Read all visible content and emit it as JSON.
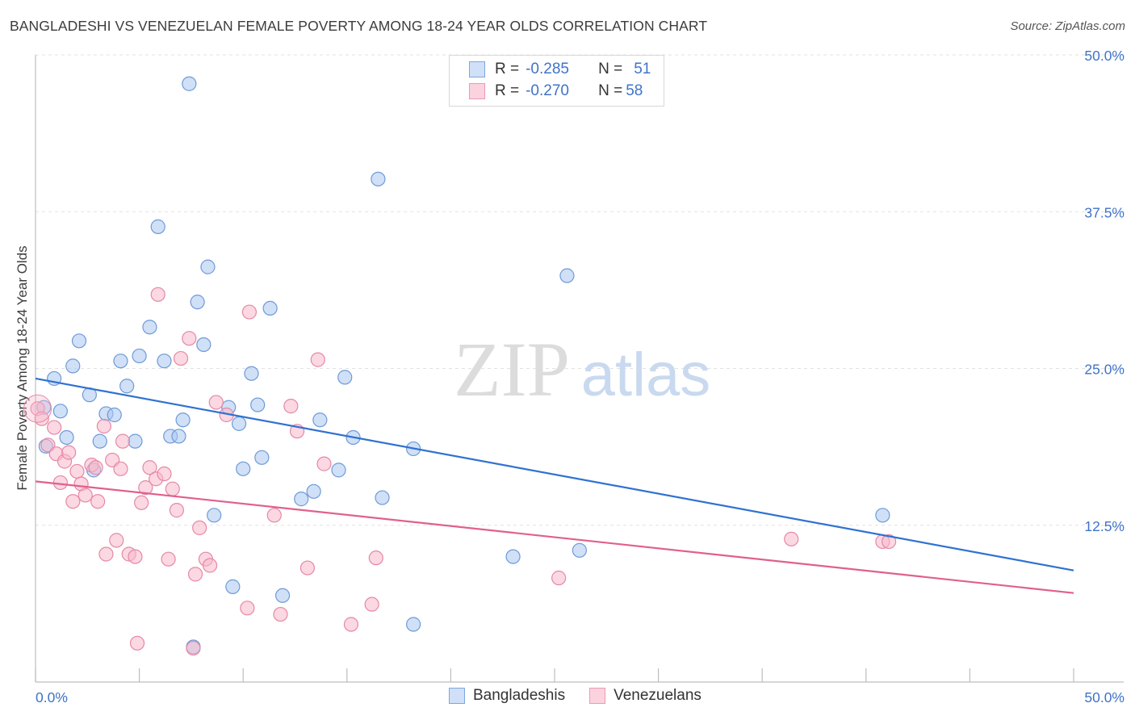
{
  "header": {
    "title": "BANGLADESHI VS VENEZUELAN FEMALE POVERTY AMONG 18-24 YEAR OLDS CORRELATION CHART",
    "source": "Source: ZipAtlas.com"
  },
  "watermark": {
    "zip": "ZIP",
    "atlas": "atlas"
  },
  "legend": {
    "rows": [
      {
        "r_label": "R =",
        "r_value": "-0.285",
        "n_label": "N =",
        "n_value": "51",
        "color": "#a9c7f0"
      },
      {
        "r_label": "R =",
        "r_value": "-0.270",
        "n_label": "N =",
        "n_value": "58",
        "color": "#f7b8cb"
      }
    ]
  },
  "bottom_legend": {
    "items": [
      "Bangladeshis",
      "Venezuelans"
    ]
  },
  "chart_data": {
    "type": "scatter",
    "title": "BANGLADESHI VS VENEZUELAN FEMALE POVERTY AMONG 18-24 YEAR OLDS CORRELATION CHART",
    "xlabel": "",
    "ylabel": "Female Poverty Among 18-24 Year Olds",
    "xlim": [
      0,
      50
    ],
    "ylim": [
      0,
      50
    ],
    "x_tick_labels": [
      "0.0%",
      "50.0%"
    ],
    "y_tick_labels": [
      "12.5%",
      "25.0%",
      "37.5%",
      "50.0%"
    ],
    "y_ticks": [
      12.5,
      25,
      37.5,
      50
    ],
    "grid": true,
    "legend_placement": "top-center",
    "series": [
      {
        "name": "Bangladeshis",
        "color": "#a9c7f0",
        "stroke": "#6e9ad8",
        "line_color": "#2f72d0",
        "trend": {
          "x": [
            0,
            50
          ],
          "y": [
            24.2,
            8.9
          ]
        },
        "points": [
          [
            0.4,
            21.9
          ],
          [
            0.5,
            18.8
          ],
          [
            0.9,
            24.2
          ],
          [
            1.2,
            21.6
          ],
          [
            1.5,
            19.5
          ],
          [
            1.8,
            25.2
          ],
          [
            2.1,
            27.2
          ],
          [
            2.6,
            22.9
          ],
          [
            2.8,
            16.9
          ],
          [
            3.1,
            19.2
          ],
          [
            3.4,
            21.4
          ],
          [
            3.8,
            21.3
          ],
          [
            4.1,
            25.6
          ],
          [
            4.4,
            23.6
          ],
          [
            4.8,
            19.2
          ],
          [
            5.0,
            26.0
          ],
          [
            5.5,
            28.3
          ],
          [
            5.9,
            36.3
          ],
          [
            6.2,
            25.6
          ],
          [
            6.5,
            19.6
          ],
          [
            6.9,
            19.6
          ],
          [
            7.1,
            20.9
          ],
          [
            7.4,
            47.7
          ],
          [
            7.8,
            30.3
          ],
          [
            8.1,
            26.9
          ],
          [
            8.3,
            33.1
          ],
          [
            8.6,
            13.3
          ],
          [
            9.3,
            21.9
          ],
          [
            9.5,
            7.6
          ],
          [
            9.8,
            20.6
          ],
          [
            10.0,
            17.0
          ],
          [
            10.4,
            24.6
          ],
          [
            10.7,
            22.1
          ],
          [
            10.9,
            17.9
          ],
          [
            11.3,
            29.8
          ],
          [
            11.9,
            6.9
          ],
          [
            12.8,
            14.6
          ],
          [
            13.4,
            15.2
          ],
          [
            13.7,
            20.9
          ],
          [
            14.6,
            16.9
          ],
          [
            14.9,
            24.3
          ],
          [
            15.3,
            19.5
          ],
          [
            16.5,
            40.1
          ],
          [
            16.7,
            14.7
          ],
          [
            18.2,
            18.6
          ],
          [
            18.2,
            4.6
          ],
          [
            23.0,
            10.0
          ],
          [
            25.6,
            32.4
          ],
          [
            26.2,
            10.5
          ],
          [
            40.8,
            13.3
          ],
          [
            7.6,
            2.8
          ]
        ]
      },
      {
        "name": "Venezuelans",
        "color": "#f7b8cb",
        "stroke": "#e688a6",
        "line_color": "#e0608c",
        "trend": {
          "x": [
            0,
            50
          ],
          "y": [
            16.0,
            7.1
          ]
        },
        "points": [
          [
            0.1,
            21.8
          ],
          [
            0.3,
            21.0
          ],
          [
            0.6,
            18.9
          ],
          [
            0.9,
            20.3
          ],
          [
            1.0,
            18.2
          ],
          [
            1.2,
            15.9
          ],
          [
            1.4,
            17.6
          ],
          [
            1.6,
            18.3
          ],
          [
            1.8,
            14.4
          ],
          [
            2.0,
            16.8
          ],
          [
            2.2,
            15.8
          ],
          [
            2.4,
            14.9
          ],
          [
            2.7,
            17.3
          ],
          [
            2.9,
            17.1
          ],
          [
            3.0,
            14.4
          ],
          [
            3.3,
            20.4
          ],
          [
            3.4,
            10.2
          ],
          [
            3.7,
            17.7
          ],
          [
            3.9,
            11.3
          ],
          [
            4.1,
            17.0
          ],
          [
            4.2,
            19.2
          ],
          [
            4.5,
            10.2
          ],
          [
            4.8,
            10.0
          ],
          [
            4.9,
            3.1
          ],
          [
            5.1,
            14.3
          ],
          [
            5.3,
            15.5
          ],
          [
            5.5,
            17.1
          ],
          [
            5.8,
            16.2
          ],
          [
            5.9,
            30.9
          ],
          [
            6.2,
            16.6
          ],
          [
            6.4,
            9.8
          ],
          [
            6.6,
            15.4
          ],
          [
            6.8,
            13.7
          ],
          [
            7.0,
            25.8
          ],
          [
            7.4,
            27.4
          ],
          [
            7.7,
            8.6
          ],
          [
            7.9,
            12.3
          ],
          [
            8.2,
            9.8
          ],
          [
            8.4,
            9.3
          ],
          [
            8.7,
            22.3
          ],
          [
            9.2,
            21.3
          ],
          [
            10.2,
            5.9
          ],
          [
            10.3,
            29.5
          ],
          [
            11.5,
            13.3
          ],
          [
            11.8,
            5.4
          ],
          [
            12.3,
            22.0
          ],
          [
            12.6,
            20.0
          ],
          [
            13.1,
            9.1
          ],
          [
            13.6,
            25.7
          ],
          [
            13.9,
            17.4
          ],
          [
            15.2,
            4.6
          ],
          [
            16.2,
            6.2
          ],
          [
            16.4,
            9.9
          ],
          [
            25.2,
            8.3
          ],
          [
            36.4,
            11.4
          ],
          [
            40.8,
            11.2
          ],
          [
            41.1,
            11.2
          ],
          [
            7.6,
            2.7
          ]
        ]
      }
    ]
  }
}
